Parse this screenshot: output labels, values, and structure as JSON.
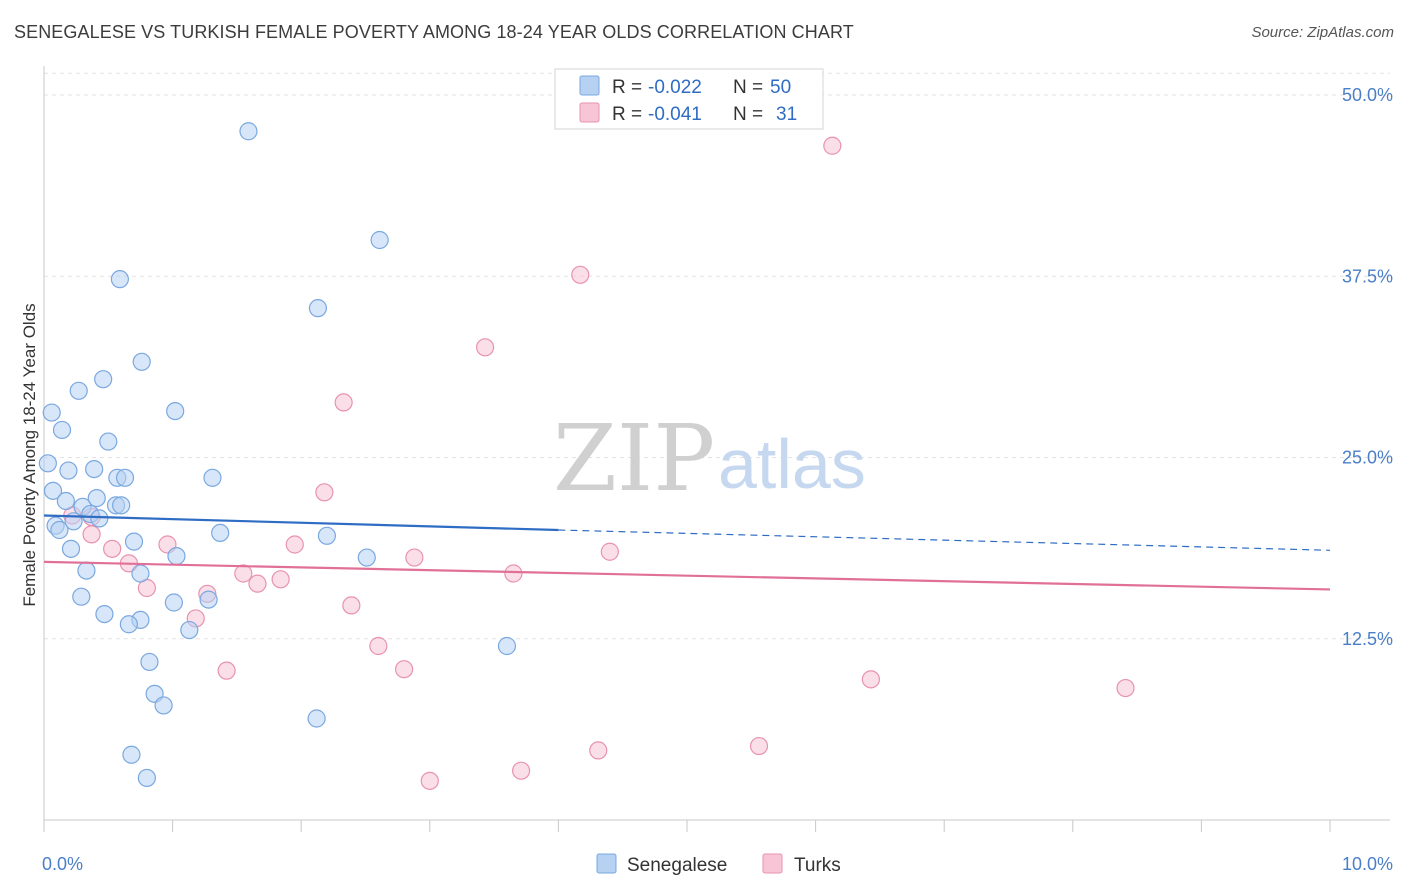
{
  "title": "SENEGALESE VS TURKISH FEMALE POVERTY AMONG 18-24 YEAR OLDS CORRELATION CHART",
  "source": "Source: ZipAtlas.com",
  "watermark": {
    "zip": "ZIP",
    "atlas": "atlas"
  },
  "colors": {
    "senegalese_fill": "#b7d1f3",
    "senegalese_stroke": "#7aa8e0",
    "senegalese_line": "#2f6cc4",
    "turks_fill": "#f7c5d5",
    "turks_stroke": "#e892b0",
    "turks_line": "#e07098",
    "grid": "#e2e2e2",
    "tick_label": "#4a7fc8"
  },
  "stats": {
    "r_label": "R =",
    "n_label": "N =",
    "senegalese": {
      "r": "-0.022",
      "n": "50"
    },
    "turks": {
      "r": "-0.041",
      "n": "31"
    }
  },
  "legend": {
    "senegalese": "Senegalese",
    "turks": "Turks"
  },
  "chart_data": {
    "type": "scatter",
    "title": "SENEGALESE VS TURKISH FEMALE POVERTY AMONG 18-24 YEAR OLDS CORRELATION CHART",
    "xlabel": "",
    "ylabel": "Female Poverty Among 18-24 Year Olds",
    "xlim": [
      0,
      10
    ],
    "ylim": [
      0,
      52
    ],
    "x_ticks": [
      {
        "v": 0,
        "label": "0.0%"
      },
      {
        "v": 10,
        "label": "10.0%"
      }
    ],
    "y_ticks": [
      {
        "v": 12.5,
        "label": "12.5%"
      },
      {
        "v": 25,
        "label": "25.0%"
      },
      {
        "v": 37.5,
        "label": "37.5%"
      },
      {
        "v": 50,
        "label": "50.0%"
      }
    ],
    "grid": true,
    "legend_position": "bottom",
    "series": [
      {
        "name": "Senegalese",
        "points": [
          [
            1.59,
            47.5
          ],
          [
            2.61,
            40.0
          ],
          [
            0.59,
            37.3
          ],
          [
            2.13,
            35.3
          ],
          [
            0.76,
            31.6
          ],
          [
            0.27,
            29.6
          ],
          [
            0.46,
            30.4
          ],
          [
            0.06,
            28.1
          ],
          [
            1.02,
            28.2
          ],
          [
            0.14,
            26.9
          ],
          [
            0.5,
            26.1
          ],
          [
            0.03,
            24.6
          ],
          [
            0.19,
            24.1
          ],
          [
            0.39,
            24.2
          ],
          [
            0.57,
            23.6
          ],
          [
            0.63,
            23.6
          ],
          [
            1.31,
            23.6
          ],
          [
            0.07,
            22.7
          ],
          [
            0.41,
            22.2
          ],
          [
            0.17,
            22.0
          ],
          [
            0.3,
            21.6
          ],
          [
            0.56,
            21.7
          ],
          [
            0.6,
            21.7
          ],
          [
            0.36,
            21.1
          ],
          [
            0.43,
            20.8
          ],
          [
            0.23,
            20.6
          ],
          [
            0.09,
            20.3
          ],
          [
            0.12,
            20.0
          ],
          [
            1.37,
            19.8
          ],
          [
            2.2,
            19.6
          ],
          [
            0.7,
            19.2
          ],
          [
            1.03,
            18.2
          ],
          [
            2.51,
            18.1
          ],
          [
            0.21,
            18.7
          ],
          [
            0.75,
            17.0
          ],
          [
            0.33,
            17.2
          ],
          [
            0.29,
            15.4
          ],
          [
            1.28,
            15.2
          ],
          [
            1.01,
            15.0
          ],
          [
            0.47,
            14.2
          ],
          [
            0.75,
            13.8
          ],
          [
            0.66,
            13.5
          ],
          [
            1.13,
            13.1
          ],
          [
            3.6,
            12.0
          ],
          [
            0.82,
            10.9
          ],
          [
            0.86,
            8.7
          ],
          [
            0.93,
            7.9
          ],
          [
            2.12,
            7.0
          ],
          [
            0.68,
            4.5
          ],
          [
            0.8,
            2.9
          ]
        ]
      },
      {
        "name": "Turks",
        "points": [
          [
            6.13,
            46.5
          ],
          [
            4.17,
            37.6
          ],
          [
            3.43,
            32.6
          ],
          [
            2.33,
            28.8
          ],
          [
            2.18,
            22.6
          ],
          [
            0.22,
            21.0
          ],
          [
            0.37,
            20.9
          ],
          [
            0.37,
            19.7
          ],
          [
            0.53,
            18.7
          ],
          [
            0.96,
            19.0
          ],
          [
            1.95,
            19.0
          ],
          [
            2.88,
            18.1
          ],
          [
            4.4,
            18.5
          ],
          [
            0.66,
            17.7
          ],
          [
            3.65,
            17.0
          ],
          [
            1.55,
            17.0
          ],
          [
            1.66,
            16.3
          ],
          [
            1.84,
            16.6
          ],
          [
            0.8,
            16.0
          ],
          [
            1.27,
            15.6
          ],
          [
            2.39,
            14.8
          ],
          [
            1.18,
            13.9
          ],
          [
            2.6,
            12.0
          ],
          [
            2.8,
            10.4
          ],
          [
            1.42,
            10.3
          ],
          [
            6.43,
            9.7
          ],
          [
            8.41,
            9.1
          ],
          [
            5.56,
            5.1
          ],
          [
            4.31,
            4.8
          ],
          [
            3.71,
            3.4
          ],
          [
            3.0,
            2.7
          ]
        ]
      }
    ],
    "trend_lines": [
      {
        "name": "Senegalese",
        "x0": 0,
        "y0": 21.0,
        "x1": 4.0,
        "y1": 20.0,
        "dash_to_x": 10,
        "dash_to_y": 18.6
      },
      {
        "name": "Turks",
        "x0": 0,
        "y0": 17.8,
        "x1": 10,
        "y1": 15.9
      }
    ]
  }
}
